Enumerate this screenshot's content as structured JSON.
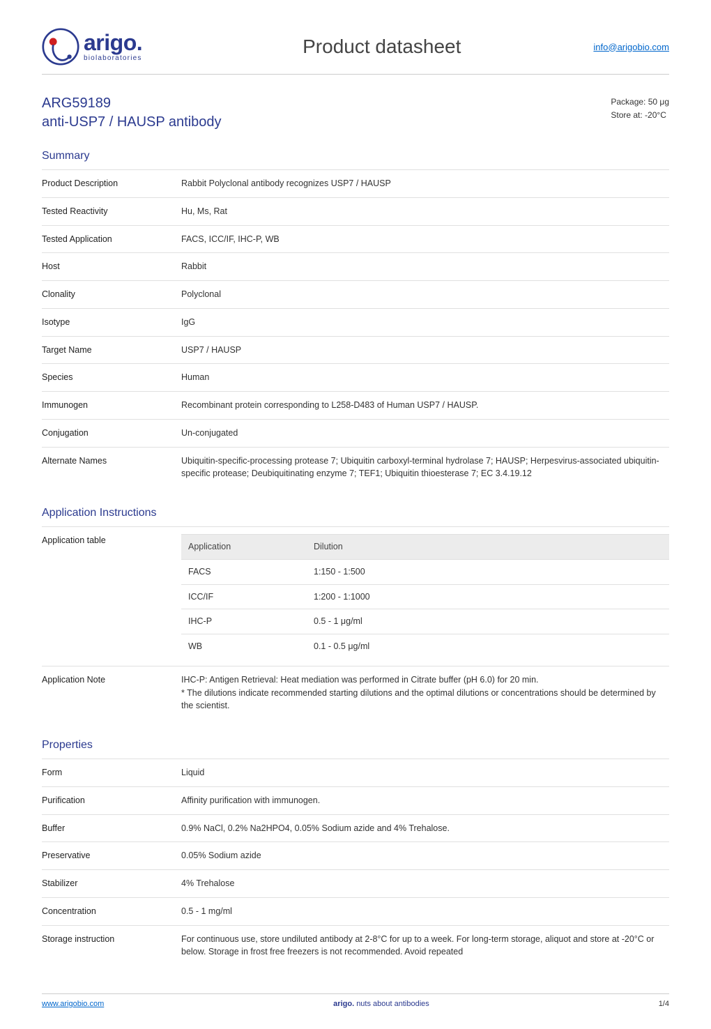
{
  "header": {
    "logo_name": "arigo.",
    "logo_sub": "biolaboratories",
    "title": "Product datasheet",
    "link": "info@arigobio.com",
    "logo_colors": {
      "circle": "#2b3a8f",
      "accent": "#d01f1f"
    }
  },
  "product": {
    "code": "ARG59189",
    "name": "anti-USP7 / HAUSP antibody",
    "package": "Package: 50 μg",
    "store": "Store at: -20°C"
  },
  "summary": {
    "title": "Summary",
    "rows": [
      {
        "k": "Product Description",
        "v": "Rabbit Polyclonal antibody recognizes USP7 / HAUSP"
      },
      {
        "k": "Tested Reactivity",
        "v": "Hu, Ms, Rat"
      },
      {
        "k": "Tested Application",
        "v": "FACS, ICC/IF, IHC-P, WB"
      },
      {
        "k": "Host",
        "v": "Rabbit"
      },
      {
        "k": "Clonality",
        "v": "Polyclonal"
      },
      {
        "k": "Isotype",
        "v": "IgG"
      },
      {
        "k": "Target Name",
        "v": "USP7 / HAUSP"
      },
      {
        "k": "Species",
        "v": "Human"
      },
      {
        "k": "Immunogen",
        "v": "Recombinant protein corresponding to L258-D483 of Human USP7 / HAUSP."
      },
      {
        "k": "Conjugation",
        "v": "Un-conjugated"
      },
      {
        "k": "Alternate Names",
        "v": "Ubiquitin-specific-processing protease 7; Ubiquitin carboxyl-terminal hydrolase 7; HAUSP; Herpesvirus-associated ubiquitin-specific protease; Deubiquitinating enzyme 7; TEF1; Ubiquitin thioesterase 7; EC 3.4.19.12"
      }
    ]
  },
  "application_instructions": {
    "title": "Application Instructions",
    "table_label": "Application table",
    "table_header": {
      "c1": "Application",
      "c2": "Dilution"
    },
    "table_rows": [
      {
        "c1": "FACS",
        "c2": "1:150 - 1:500"
      },
      {
        "c1": "ICC/IF",
        "c2": "1:200 - 1:1000"
      },
      {
        "c1": "IHC-P",
        "c2": "0.5 - 1 μg/ml"
      },
      {
        "c1": "WB",
        "c2": "0.1 - 0.5 μg/ml"
      }
    ],
    "note_label": "Application Note",
    "note_text": "IHC-P: Antigen Retrieval: Heat mediation was performed in Citrate buffer (pH 6.0) for 20 min.\n* The dilutions indicate recommended starting dilutions and the optimal dilutions or concentrations should be determined by the scientist."
  },
  "properties": {
    "title": "Properties",
    "rows": [
      {
        "k": "Form",
        "v": "Liquid"
      },
      {
        "k": "Purification",
        "v": "Affinity purification with immunogen."
      },
      {
        "k": "Buffer",
        "v": "0.9% NaCl, 0.2% Na2HPO4, 0.05% Sodium azide and 4% Trehalose."
      },
      {
        "k": "Preservative",
        "v": "0.05% Sodium azide"
      },
      {
        "k": "Stabilizer",
        "v": "4% Trehalose"
      },
      {
        "k": "Concentration",
        "v": "0.5 - 1 mg/ml"
      },
      {
        "k": "Storage instruction",
        "v": "For continuous use, store undiluted antibody at 2-8°C for up to a week. For long-term storage, aliquot and store at -20°C or below. Storage in frost free freezers is not recommended. Avoid repeated"
      }
    ]
  },
  "footer": {
    "left": "www.arigobio.com",
    "center_brand": "arigo.",
    "center_text": "nuts about antibodies",
    "right": "1/4"
  },
  "colors": {
    "heading": "#2b3a8f",
    "text": "#333333",
    "link": "#0066cc",
    "rule": "#e0e0e0",
    "table_header_bg": "#ececec"
  }
}
